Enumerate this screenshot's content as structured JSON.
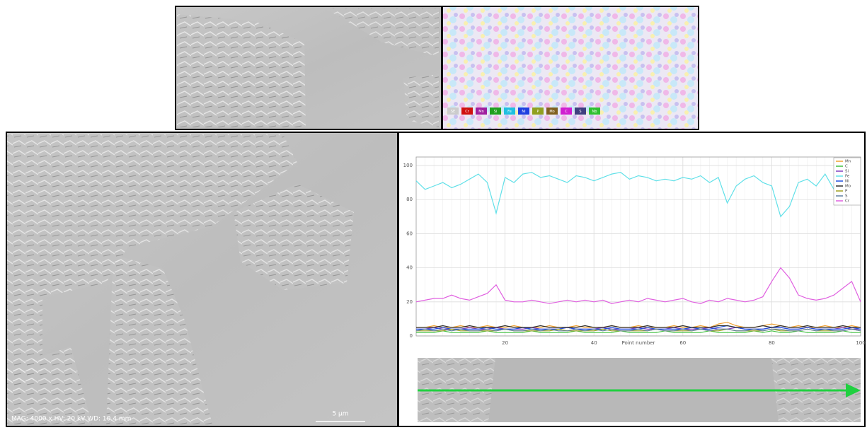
{
  "sem_caption": "MAG: 4000 x  HV: 20 kV  WD: 10.4 mm",
  "scale_bar": "5 μm",
  "map_legend": [
    {
      "label": "SE",
      "color": "#cccccc"
    },
    {
      "label": "Cr",
      "color": "#d01010"
    },
    {
      "label": "Mn",
      "color": "#a020a0"
    },
    {
      "label": "Si",
      "color": "#20a020"
    },
    {
      "label": "Fe",
      "color": "#20c0e0"
    },
    {
      "label": "Ni",
      "color": "#2040e0"
    },
    {
      "label": "P",
      "color": "#90a020"
    },
    {
      "label": "Mo",
      "color": "#806020"
    },
    {
      "label": "C",
      "color": "#d020d0"
    },
    {
      "label": "S",
      "color": "#404080"
    },
    {
      "label": "Nb",
      "color": "#30c030"
    }
  ],
  "chart_data": {
    "type": "line",
    "x_label": "Point number",
    "x": [
      0,
      2,
      4,
      6,
      8,
      10,
      12,
      14,
      16,
      18,
      20,
      22,
      24,
      26,
      28,
      30,
      32,
      34,
      36,
      38,
      40,
      42,
      44,
      46,
      48,
      50,
      52,
      54,
      56,
      58,
      60,
      62,
      64,
      66,
      68,
      70,
      72,
      74,
      76,
      78,
      80,
      82,
      84,
      86,
      88,
      90,
      92,
      94,
      96,
      98,
      100
    ],
    "xlim": [
      0,
      100
    ],
    "xticks": [
      20,
      40,
      60,
      80,
      100
    ],
    "ylim": [
      0,
      105
    ],
    "yticks": [
      0,
      20,
      40,
      60,
      80,
      100
    ],
    "grid": true,
    "legend": "top-right",
    "series": [
      {
        "name": "Mn",
        "color": "#f0a030",
        "values": [
          5,
          5,
          6,
          5,
          5,
          6,
          5,
          5,
          6,
          5,
          5,
          6,
          5,
          5,
          5,
          6,
          5,
          5,
          6,
          5,
          5,
          5,
          6,
          5,
          5,
          6,
          5,
          5,
          5,
          6,
          5,
          5,
          6,
          5,
          7,
          8,
          6,
          5,
          5,
          6,
          7,
          6,
          5,
          6,
          5,
          5,
          6,
          5,
          5,
          6,
          5
        ]
      },
      {
        "name": "C",
        "color": "#40c040",
        "values": [
          2,
          2,
          2,
          3,
          2,
          2,
          2,
          2,
          3,
          2,
          2,
          2,
          2,
          3,
          2,
          2,
          2,
          2,
          3,
          2,
          2,
          2,
          2,
          3,
          2,
          2,
          2,
          2,
          3,
          2,
          2,
          2,
          2,
          3,
          2,
          2,
          2,
          2,
          3,
          2,
          3,
          2,
          2,
          3,
          2,
          2,
          2,
          2,
          3,
          2,
          2
        ]
      },
      {
        "name": "Si",
        "color": "#8040c0",
        "values": [
          4,
          4,
          5,
          4,
          4,
          4,
          5,
          4,
          4,
          5,
          4,
          4,
          4,
          5,
          4,
          4,
          4,
          5,
          4,
          4,
          4,
          5,
          4,
          4,
          4,
          5,
          4,
          4,
          4,
          5,
          4,
          4,
          4,
          5,
          4,
          4,
          5,
          4,
          4,
          4,
          5,
          5,
          4,
          4,
          5,
          4,
          4,
          4,
          5,
          4,
          4
        ]
      },
      {
        "name": "Fe",
        "color": "#60e0e8",
        "values": [
          91,
          86,
          88,
          90,
          87,
          89,
          92,
          95,
          90,
          72,
          93,
          90,
          95,
          96,
          93,
          94,
          92,
          90,
          94,
          93,
          91,
          93,
          95,
          96,
          92,
          94,
          93,
          91,
          92,
          91,
          93,
          92,
          94,
          90,
          93,
          78,
          88,
          92,
          94,
          90,
          88,
          70,
          76,
          90,
          92,
          88,
          95,
          86,
          90,
          89,
          88
        ]
      },
      {
        "name": "Ni",
        "color": "#2050e0",
        "values": [
          4,
          4,
          4,
          5,
          4,
          4,
          4,
          4,
          5,
          4,
          4,
          4,
          5,
          4,
          4,
          4,
          4,
          5,
          4,
          4,
          4,
          4,
          5,
          4,
          4,
          4,
          5,
          4,
          4,
          4,
          4,
          5,
          4,
          4,
          5,
          6,
          5,
          4,
          4,
          4,
          5,
          5,
          4,
          4,
          5,
          4,
          4,
          4,
          4,
          5,
          4
        ]
      },
      {
        "name": "Mo",
        "color": "#303030",
        "values": [
          5,
          5,
          5,
          6,
          5,
          5,
          6,
          5,
          5,
          5,
          6,
          5,
          5,
          5,
          6,
          5,
          5,
          5,
          5,
          6,
          5,
          5,
          6,
          5,
          5,
          5,
          6,
          5,
          5,
          5,
          6,
          5,
          5,
          5,
          6,
          6,
          5,
          5,
          5,
          6,
          5,
          6,
          5,
          5,
          6,
          5,
          5,
          5,
          6,
          5,
          5
        ]
      },
      {
        "name": "P",
        "color": "#a0a020",
        "values": [
          3,
          3,
          3,
          3,
          4,
          3,
          3,
          3,
          3,
          3,
          4,
          3,
          3,
          3,
          3,
          3,
          4,
          3,
          3,
          3,
          3,
          4,
          3,
          3,
          3,
          3,
          3,
          4,
          3,
          3,
          3,
          3,
          4,
          3,
          3,
          4,
          3,
          3,
          3,
          3,
          4,
          3,
          3,
          3,
          4,
          3,
          3,
          3,
          3,
          4,
          3
        ]
      },
      {
        "name": "S",
        "color": "#6080a0",
        "values": [
          3,
          4,
          3,
          4,
          3,
          4,
          3,
          3,
          4,
          3,
          4,
          3,
          3,
          4,
          3,
          4,
          3,
          3,
          4,
          3,
          4,
          3,
          4,
          3,
          3,
          4,
          3,
          4,
          3,
          3,
          4,
          3,
          4,
          3,
          4,
          4,
          3,
          3,
          4,
          3,
          4,
          4,
          3,
          3,
          4,
          3,
          4,
          3,
          3,
          4,
          3
        ]
      },
      {
        "name": "Cr",
        "color": "#e060e0",
        "values": [
          20,
          21,
          22,
          22,
          24,
          22,
          21,
          23,
          25,
          30,
          21,
          20,
          20,
          21,
          20,
          19,
          20,
          21,
          20,
          21,
          20,
          21,
          19,
          20,
          21,
          20,
          22,
          21,
          20,
          21,
          22,
          20,
          19,
          21,
          20,
          22,
          21,
          20,
          21,
          23,
          32,
          40,
          34,
          24,
          22,
          21,
          22,
          24,
          28,
          32,
          20
        ]
      }
    ]
  }
}
